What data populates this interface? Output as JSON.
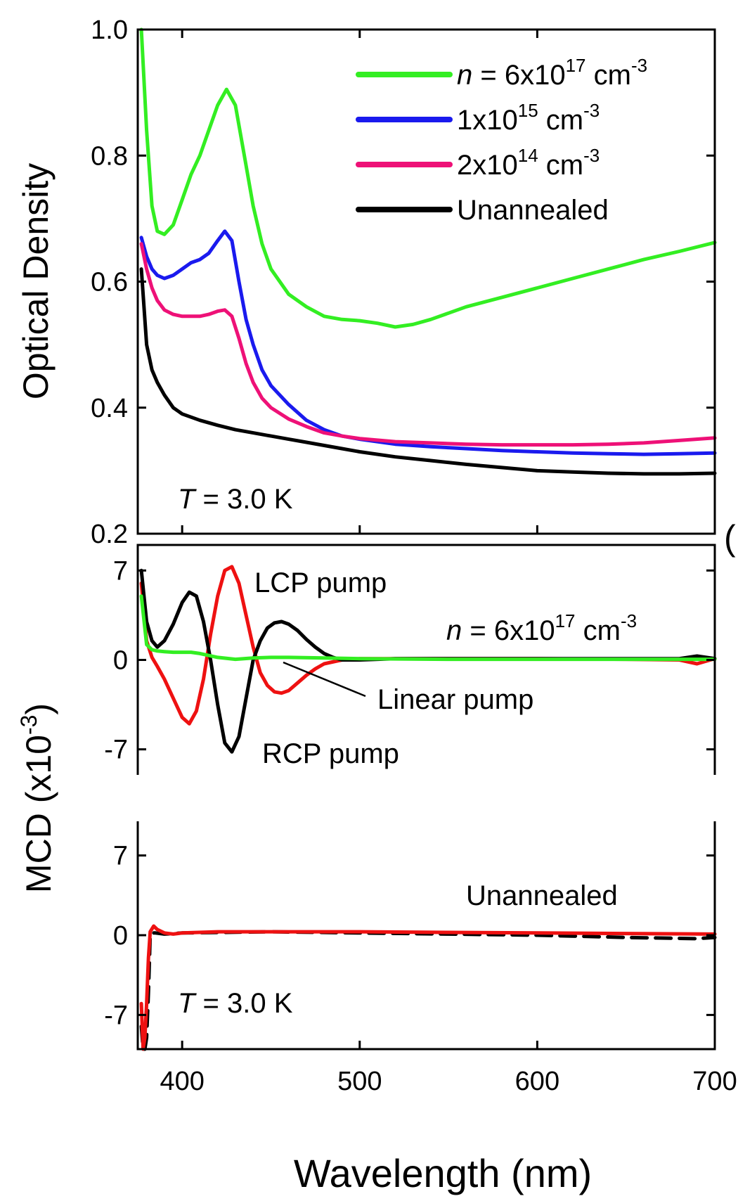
{
  "chart_data": [
    {
      "type": "line",
      "ylabel": "Optical Density",
      "xlim": [
        375,
        700
      ],
      "ylim": [
        0.2,
        1.0
      ],
      "yticks": [
        "0.2",
        "0.4",
        "0.6",
        "0.8",
        "1.0"
      ],
      "annotation": {
        "italic": "T",
        "rest": " = 3.0 K"
      },
      "legend": {
        "position": "top-right"
      },
      "series": [
        {
          "name_italic": "n",
          "name_main": " = 6x10",
          "name_sup": "17",
          "name_unit": " cm",
          "name_unit_sup": "-3",
          "color": "#33ee22",
          "x": [
            377,
            380,
            383,
            386,
            390,
            395,
            400,
            405,
            410,
            415,
            420,
            425,
            430,
            435,
            440,
            445,
            450,
            460,
            470,
            480,
            490,
            500,
            510,
            520,
            530,
            540,
            550,
            560,
            580,
            600,
            620,
            640,
            660,
            680,
            700
          ],
          "y": [
            1.0,
            0.84,
            0.72,
            0.68,
            0.675,
            0.69,
            0.73,
            0.77,
            0.8,
            0.84,
            0.88,
            0.905,
            0.88,
            0.8,
            0.72,
            0.66,
            0.62,
            0.58,
            0.56,
            0.545,
            0.54,
            0.538,
            0.534,
            0.528,
            0.532,
            0.54,
            0.55,
            0.56,
            0.575,
            0.59,
            0.605,
            0.62,
            0.635,
            0.648,
            0.662
          ]
        },
        {
          "name_italic": "",
          "name_main": "1x10",
          "name_sup": "15",
          "name_unit": " cm",
          "name_unit_sup": "-3",
          "color": "#1a1aee",
          "x": [
            377,
            380,
            383,
            386,
            390,
            395,
            400,
            405,
            410,
            415,
            420,
            424,
            428,
            432,
            436,
            440,
            445,
            450,
            460,
            470,
            480,
            490,
            500,
            520,
            540,
            560,
            580,
            600,
            620,
            640,
            660,
            680,
            700
          ],
          "y": [
            0.67,
            0.64,
            0.62,
            0.61,
            0.605,
            0.61,
            0.62,
            0.63,
            0.635,
            0.645,
            0.665,
            0.68,
            0.665,
            0.6,
            0.54,
            0.5,
            0.46,
            0.435,
            0.405,
            0.38,
            0.365,
            0.355,
            0.35,
            0.342,
            0.338,
            0.335,
            0.332,
            0.33,
            0.328,
            0.327,
            0.326,
            0.327,
            0.328
          ]
        },
        {
          "name_italic": "",
          "name_main": "2x10",
          "name_sup": "14",
          "name_unit": " cm",
          "name_unit_sup": "-3",
          "color": "#ee1177",
          "x": [
            377,
            380,
            383,
            386,
            390,
            395,
            400,
            405,
            410,
            415,
            420,
            424,
            428,
            432,
            436,
            440,
            445,
            450,
            460,
            470,
            480,
            490,
            500,
            520,
            540,
            560,
            580,
            600,
            620,
            640,
            660,
            680,
            700
          ],
          "y": [
            0.66,
            0.62,
            0.59,
            0.57,
            0.555,
            0.548,
            0.545,
            0.545,
            0.545,
            0.548,
            0.553,
            0.555,
            0.545,
            0.51,
            0.47,
            0.44,
            0.415,
            0.4,
            0.382,
            0.37,
            0.36,
            0.355,
            0.351,
            0.346,
            0.344,
            0.342,
            0.341,
            0.341,
            0.341,
            0.342,
            0.344,
            0.348,
            0.352
          ]
        },
        {
          "name_italic": "",
          "name_main": "Unannealed",
          "name_sup": "",
          "name_unit": "",
          "name_unit_sup": "",
          "color": "#000000",
          "x": [
            377,
            380,
            383,
            386,
            390,
            395,
            400,
            405,
            410,
            420,
            430,
            440,
            450,
            460,
            470,
            480,
            490,
            500,
            520,
            540,
            560,
            580,
            600,
            620,
            640,
            660,
            680,
            700
          ],
          "y": [
            0.62,
            0.5,
            0.46,
            0.44,
            0.42,
            0.4,
            0.39,
            0.385,
            0.38,
            0.372,
            0.365,
            0.36,
            0.355,
            0.35,
            0.345,
            0.34,
            0.335,
            0.33,
            0.322,
            0.316,
            0.31,
            0.305,
            0.3,
            0.298,
            0.296,
            0.295,
            0.295,
            0.296
          ]
        }
      ]
    },
    {
      "type": "line",
      "xlim": [
        375,
        700
      ],
      "ylim": [
        -9,
        9
      ],
      "yticks": [
        "-7",
        "0",
        "7"
      ],
      "ytick_values": [
        -7,
        0,
        7
      ],
      "annotations": {
        "density": {
          "italic": "n",
          "main": " = 6x10",
          "sup": "17",
          "unit": " cm",
          "unit_sup": "-3"
        },
        "lcp": "LCP pump",
        "linear": "Linear pump",
        "rcp": "RCP pump"
      },
      "series": [
        {
          "name": "LCP pump",
          "color": "#ee1111",
          "x": [
            377,
            380,
            383,
            386,
            390,
            395,
            400,
            404,
            408,
            412,
            416,
            420,
            424,
            428,
            432,
            436,
            440,
            444,
            448,
            452,
            456,
            460,
            465,
            470,
            475,
            480,
            490,
            500,
            520,
            560,
            600,
            650,
            680,
            690,
            700
          ],
          "y": [
            6,
            1.5,
            0.2,
            -0.5,
            -1.5,
            -3,
            -4.5,
            -5,
            -4,
            -1.5,
            2,
            5,
            7,
            7.3,
            6,
            3.5,
            1,
            -1,
            -2,
            -2.5,
            -2.6,
            -2.4,
            -1.8,
            -1.2,
            -0.7,
            -0.3,
            0,
            0.1,
            0.1,
            0.1,
            0.1,
            0.05,
            0,
            -0.3,
            0.1
          ]
        },
        {
          "name": "RCP pump",
          "color": "#000000",
          "x": [
            377,
            380,
            383,
            386,
            390,
            395,
            400,
            404,
            408,
            412,
            416,
            420,
            424,
            428,
            432,
            436,
            440,
            444,
            448,
            452,
            456,
            460,
            465,
            470,
            475,
            480,
            485,
            490,
            500,
            520,
            560,
            600,
            650,
            680,
            690,
            700
          ],
          "y": [
            7,
            3,
            1.5,
            1,
            1.5,
            2.8,
            4.5,
            5.3,
            5,
            3,
            0,
            -3.5,
            -6.5,
            -7.2,
            -6,
            -3,
            0,
            1.5,
            2.5,
            2.9,
            3,
            2.8,
            2.3,
            1.6,
            1,
            0.5,
            0.2,
            0,
            0,
            0.1,
            0.1,
            0.1,
            0.1,
            0.1,
            0.3,
            0.1
          ]
        },
        {
          "name": "Linear pump",
          "color": "#33ee22",
          "x": [
            377,
            380,
            383,
            386,
            390,
            395,
            400,
            405,
            410,
            420,
            430,
            440,
            450,
            460,
            480,
            500,
            550,
            600,
            650,
            700
          ],
          "y": [
            5,
            1.2,
            0.8,
            0.7,
            0.65,
            0.6,
            0.6,
            0.6,
            0.5,
            0.2,
            0.05,
            0.15,
            0.2,
            0.2,
            0.15,
            0.1,
            0.05,
            0.05,
            0.05,
            0.05
          ]
        }
      ]
    },
    {
      "type": "line",
      "xlabel": "Wavelength (nm)",
      "xlim": [
        375,
        700
      ],
      "xticks": [
        "400",
        "500",
        "600",
        "700"
      ],
      "xtick_values": [
        400,
        500,
        600,
        700
      ],
      "ylim": [
        -10,
        10
      ],
      "yticks": [
        "-7",
        "0",
        "7"
      ],
      "ytick_values": [
        -7,
        0,
        7
      ],
      "annotations": {
        "label": "Unannealed",
        "temperature": {
          "italic": "T",
          "rest": " = 3.0 K"
        }
      },
      "series": [
        {
          "name": "dashed",
          "color": "#000000",
          "dashed": true,
          "x": [
            377,
            378,
            379,
            380,
            381,
            382,
            383,
            385,
            390,
            400,
            450,
            500,
            550,
            600,
            650,
            690,
            700
          ],
          "y": [
            -8,
            -10,
            -10,
            -9,
            -5,
            0,
            0.2,
            0.2,
            0.1,
            0.2,
            0.3,
            0.2,
            0.1,
            0,
            -0.2,
            -0.3,
            -0.2
          ]
        },
        {
          "name": "solid",
          "color": "#ee1111",
          "dashed": false,
          "x": [
            377,
            378,
            379,
            380,
            381,
            382,
            384,
            386,
            390,
            395,
            400,
            420,
            450,
            500,
            550,
            600,
            650,
            700
          ],
          "y": [
            -6,
            -10,
            -9,
            -6,
            -2,
            0.3,
            0.8,
            0.5,
            0.2,
            0.1,
            0.2,
            0.3,
            0.3,
            0.3,
            0.25,
            0.2,
            0.15,
            0.1
          ]
        }
      ]
    }
  ],
  "shared_ylabel": {
    "main": "MCD (x10",
    "sup": "-3",
    "close": ")"
  },
  "edge_glyph": "("
}
